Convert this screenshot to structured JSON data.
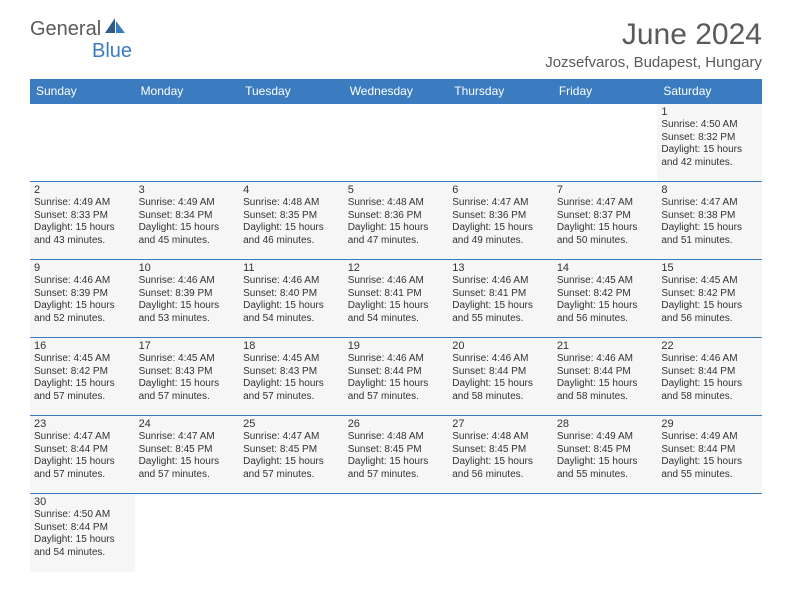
{
  "branding": {
    "logo_general": "General",
    "logo_blue": "Blue",
    "logo_color_general": "#5a5a5a",
    "logo_color_blue": "#3b7bbf"
  },
  "header": {
    "month_title": "June 2024",
    "location": "Jozsefvaros, Budapest, Hungary"
  },
  "styling": {
    "header_bg": "#3b7bbf",
    "header_text": "#ffffff",
    "cell_bg": "#f6f6f6",
    "border_color": "#3b7bbf",
    "body_text": "#333333",
    "title_color": "#5a5a5a",
    "month_title_fontsize": 30,
    "location_fontsize": 15,
    "day_header_fontsize": 12,
    "daynum_fontsize": 11,
    "dayinfo_fontsize": 10
  },
  "weekdays": [
    "Sunday",
    "Monday",
    "Tuesday",
    "Wednesday",
    "Thursday",
    "Friday",
    "Saturday"
  ],
  "days": {
    "1": {
      "sunrise": "4:50 AM",
      "sunset": "8:32 PM",
      "daylight": "15 hours and 42 minutes."
    },
    "2": {
      "sunrise": "4:49 AM",
      "sunset": "8:33 PM",
      "daylight": "15 hours and 43 minutes."
    },
    "3": {
      "sunrise": "4:49 AM",
      "sunset": "8:34 PM",
      "daylight": "15 hours and 45 minutes."
    },
    "4": {
      "sunrise": "4:48 AM",
      "sunset": "8:35 PM",
      "daylight": "15 hours and 46 minutes."
    },
    "5": {
      "sunrise": "4:48 AM",
      "sunset": "8:36 PM",
      "daylight": "15 hours and 47 minutes."
    },
    "6": {
      "sunrise": "4:47 AM",
      "sunset": "8:36 PM",
      "daylight": "15 hours and 49 minutes."
    },
    "7": {
      "sunrise": "4:47 AM",
      "sunset": "8:37 PM",
      "daylight": "15 hours and 50 minutes."
    },
    "8": {
      "sunrise": "4:47 AM",
      "sunset": "8:38 PM",
      "daylight": "15 hours and 51 minutes."
    },
    "9": {
      "sunrise": "4:46 AM",
      "sunset": "8:39 PM",
      "daylight": "15 hours and 52 minutes."
    },
    "10": {
      "sunrise": "4:46 AM",
      "sunset": "8:39 PM",
      "daylight": "15 hours and 53 minutes."
    },
    "11": {
      "sunrise": "4:46 AM",
      "sunset": "8:40 PM",
      "daylight": "15 hours and 54 minutes."
    },
    "12": {
      "sunrise": "4:46 AM",
      "sunset": "8:41 PM",
      "daylight": "15 hours and 54 minutes."
    },
    "13": {
      "sunrise": "4:46 AM",
      "sunset": "8:41 PM",
      "daylight": "15 hours and 55 minutes."
    },
    "14": {
      "sunrise": "4:45 AM",
      "sunset": "8:42 PM",
      "daylight": "15 hours and 56 minutes."
    },
    "15": {
      "sunrise": "4:45 AM",
      "sunset": "8:42 PM",
      "daylight": "15 hours and 56 minutes."
    },
    "16": {
      "sunrise": "4:45 AM",
      "sunset": "8:42 PM",
      "daylight": "15 hours and 57 minutes."
    },
    "17": {
      "sunrise": "4:45 AM",
      "sunset": "8:43 PM",
      "daylight": "15 hours and 57 minutes."
    },
    "18": {
      "sunrise": "4:45 AM",
      "sunset": "8:43 PM",
      "daylight": "15 hours and 57 minutes."
    },
    "19": {
      "sunrise": "4:46 AM",
      "sunset": "8:44 PM",
      "daylight": "15 hours and 57 minutes."
    },
    "20": {
      "sunrise": "4:46 AM",
      "sunset": "8:44 PM",
      "daylight": "15 hours and 58 minutes."
    },
    "21": {
      "sunrise": "4:46 AM",
      "sunset": "8:44 PM",
      "daylight": "15 hours and 58 minutes."
    },
    "22": {
      "sunrise": "4:46 AM",
      "sunset": "8:44 PM",
      "daylight": "15 hours and 58 minutes."
    },
    "23": {
      "sunrise": "4:47 AM",
      "sunset": "8:44 PM",
      "daylight": "15 hours and 57 minutes."
    },
    "24": {
      "sunrise": "4:47 AM",
      "sunset": "8:45 PM",
      "daylight": "15 hours and 57 minutes."
    },
    "25": {
      "sunrise": "4:47 AM",
      "sunset": "8:45 PM",
      "daylight": "15 hours and 57 minutes."
    },
    "26": {
      "sunrise": "4:48 AM",
      "sunset": "8:45 PM",
      "daylight": "15 hours and 57 minutes."
    },
    "27": {
      "sunrise": "4:48 AM",
      "sunset": "8:45 PM",
      "daylight": "15 hours and 56 minutes."
    },
    "28": {
      "sunrise": "4:49 AM",
      "sunset": "8:45 PM",
      "daylight": "15 hours and 55 minutes."
    },
    "29": {
      "sunrise": "4:49 AM",
      "sunset": "8:44 PM",
      "daylight": "15 hours and 55 minutes."
    },
    "30": {
      "sunrise": "4:50 AM",
      "sunset": "8:44 PM",
      "daylight": "15 hours and 54 minutes."
    }
  },
  "layout": {
    "first_day_column": 6,
    "num_days": 30,
    "rows": 6,
    "cols": 7
  },
  "labels": {
    "sunrise_prefix": "Sunrise: ",
    "sunset_prefix": "Sunset: ",
    "daylight_prefix": "Daylight: "
  }
}
